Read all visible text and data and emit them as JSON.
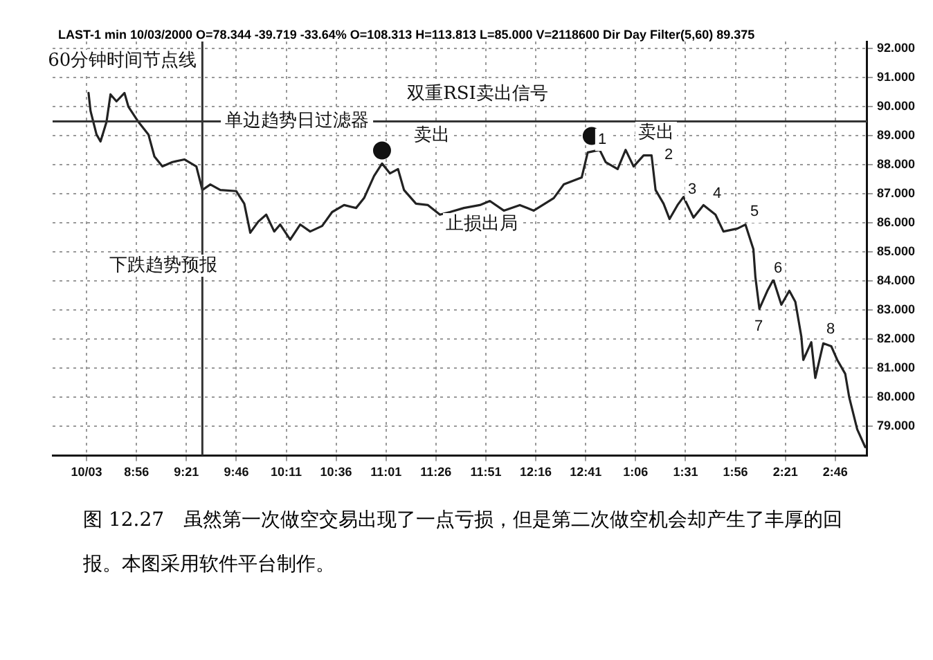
{
  "chart_data": {
    "type": "line",
    "subtitle": "LAST-1 min  10/03/2000  O=78.344  -39.719  -33.64%  O=108.313  H=113.813  L=85.000  V=2118600  Dir Day Filter(5,60)  89.375",
    "x": [
      "2000-10-03T08:32",
      "2000-10-03T08:33",
      "2000-10-03T08:36",
      "2000-10-03T08:38",
      "2000-10-03T08:41",
      "2000-10-03T08:43",
      "2000-10-03T08:46",
      "2000-10-03T08:50",
      "2000-10-03T08:52",
      "2000-10-03T08:57",
      "2000-10-03T09:02",
      "2000-10-03T09:05",
      "2000-10-03T09:09",
      "2000-10-03T09:14",
      "2000-10-03T09:20",
      "2000-10-03T09:26",
      "2000-10-03T09:29",
      "2000-10-03T09:33",
      "2000-10-03T09:38",
      "2000-10-03T09:46",
      "2000-10-03T09:50",
      "2000-10-03T09:53",
      "2000-10-03T09:57",
      "2000-10-03T10:01",
      "2000-10-03T10:05",
      "2000-10-03T10:08",
      "2000-10-03T10:13",
      "2000-10-03T10:18",
      "2000-10-03T10:23",
      "2000-10-03T10:29",
      "2000-10-03T10:34",
      "2000-10-03T10:40",
      "2000-10-03T10:46",
      "2000-10-03T10:50",
      "2000-10-03T10:55",
      "2000-10-03T10:59",
      "2000-10-03T11:03",
      "2000-10-03T11:07",
      "2000-10-03T11:10",
      "2000-10-03T11:16",
      "2000-10-03T11:22",
      "2000-10-03T11:28",
      "2000-10-03T11:33",
      "2000-10-03T11:40",
      "2000-10-03T11:48",
      "2000-10-03T11:53",
      "2000-10-03T12:00",
      "2000-10-03T12:08",
      "2000-10-03T12:15",
      "2000-10-03T12:25",
      "2000-10-03T12:30",
      "2000-10-03T12:39",
      "2000-10-03T12:42",
      "2000-10-03T12:48",
      "2000-10-03T12:51",
      "2000-10-03T12:57",
      "2000-10-03T13:01",
      "2000-10-03T13:05",
      "2000-10-03T13:10",
      "2000-10-03T13:14",
      "2000-10-03T13:16",
      "2000-10-03T13:20",
      "2000-10-03T13:23",
      "2000-10-03T13:27",
      "2000-10-03T13:30",
      "2000-10-03T13:35",
      "2000-10-03T13:40",
      "2000-10-03T13:46",
      "2000-10-03T13:50",
      "2000-10-03T13:57",
      "2000-10-03T14:01",
      "2000-10-03T14:05",
      "2000-10-03T14:06",
      "2000-10-03T14:08",
      "2000-10-03T14:12",
      "2000-10-03T14:15",
      "2000-10-03T14:19",
      "2000-10-03T14:23",
      "2000-10-03T14:26",
      "2000-10-03T14:29",
      "2000-10-03T14:30",
      "2000-10-03T14:34",
      "2000-10-03T14:36",
      "2000-10-03T14:40",
      "2000-10-03T14:44",
      "2000-10-03T14:47",
      "2000-10-03T14:51",
      "2000-10-03T14:53",
      "2000-10-03T14:57",
      "2000-10-03T15:01"
    ],
    "series": [
      {
        "color": "#222222",
        "values": [
          90.48,
          89.86,
          89.05,
          88.81,
          89.48,
          90.43,
          90.19,
          90.48,
          90.0,
          89.48,
          89.05,
          88.29,
          87.95,
          88.1,
          88.19,
          87.95,
          87.14,
          87.33,
          87.14,
          87.1,
          86.67,
          85.67,
          86.05,
          86.29,
          85.71,
          85.95,
          85.43,
          85.95,
          85.71,
          85.9,
          86.38,
          86.62,
          86.52,
          86.86,
          87.62,
          88.05,
          87.71,
          87.86,
          87.14,
          86.67,
          86.62,
          86.29,
          86.38,
          86.52,
          86.62,
          86.76,
          86.43,
          86.62,
          86.43,
          86.86,
          87.33,
          87.57,
          88.43,
          88.52,
          88.1,
          87.86,
          88.52,
          87.95,
          88.33,
          88.33,
          87.14,
          86.67,
          86.14,
          86.62,
          86.9,
          86.19,
          86.62,
          86.29,
          85.71,
          85.81,
          85.95,
          85.1,
          84.14,
          83.05,
          83.67,
          84.05,
          83.19,
          83.67,
          83.29,
          82.1,
          81.29,
          81.9,
          80.67,
          81.86,
          81.76,
          81.29,
          80.81,
          80.0,
          78.9,
          78.29
        ]
      },
      {
        "type": "scatter",
        "color": "#111111",
        "x": [
          "2000-10-03T10:59",
          "2000-10-03T12:44"
        ],
        "values": [
          88.5,
          89.0
        ]
      }
    ],
    "xlim": [
      "2000-10-03T08:14",
      "2000-10-03T15:02"
    ],
    "xticks": [
      {
        "value": "2000-10-03T08:31",
        "label": "10/03"
      },
      {
        "value": "2000-10-03T08:56",
        "label": "8:56"
      },
      {
        "value": "2000-10-03T09:21",
        "label": "9:21"
      },
      {
        "value": "2000-10-03T09:46",
        "label": "9:46"
      },
      {
        "value": "2000-10-03T10:11",
        "label": "10:11"
      },
      {
        "value": "2000-10-03T10:36",
        "label": "10:36"
      },
      {
        "value": "2000-10-03T11:01",
        "label": "11:01"
      },
      {
        "value": "2000-10-03T11:26",
        "label": "11:26"
      },
      {
        "value": "2000-10-03T11:51",
        "label": "11:51"
      },
      {
        "value": "2000-10-03T12:16",
        "label": "12:16"
      },
      {
        "value": "2000-10-03T12:41",
        "label": "12:41"
      },
      {
        "value": "2000-10-03T13:06",
        "label": "1:06"
      },
      {
        "value": "2000-10-03T13:31",
        "label": "1:31"
      },
      {
        "value": "2000-10-03T13:56",
        "label": "1:56"
      },
      {
        "value": "2000-10-03T14:21",
        "label": "2:21"
      },
      {
        "value": "2000-10-03T14:46",
        "label": "2:46"
      }
    ],
    "ylim": [
      78,
      92.25
    ],
    "yticks": [
      {
        "value": 79,
        "label": "79.000"
      },
      {
        "value": 80,
        "label": "80.000"
      },
      {
        "value": 81,
        "label": "81.000"
      },
      {
        "value": 82,
        "label": "82.000"
      },
      {
        "value": 83,
        "label": "83.000"
      },
      {
        "value": 84,
        "label": "84.000"
      },
      {
        "value": 85,
        "label": "85.000"
      },
      {
        "value": 86,
        "label": "86.000"
      },
      {
        "value": 87,
        "label": "87.000"
      },
      {
        "value": 88,
        "label": "88.000"
      },
      {
        "value": 89,
        "label": "89.000"
      },
      {
        "value": 90,
        "label": "90.000"
      },
      {
        "value": 91,
        "label": "91.000"
      },
      {
        "value": 92,
        "label": "92.000"
      }
    ],
    "grid": true,
    "legend": false,
    "line_style": "solid",
    "ref_lines": [
      {
        "axis": "y",
        "value": 89.5,
        "label": "单边趋势日过滤器",
        "color": "#333333"
      },
      {
        "axis": "x",
        "value": "2000-10-03T09:29",
        "label": "60分钟时间节点线",
        "color": "#333333"
      }
    ],
    "annotations": [
      "双重RSI卖出信号",
      "卖出",
      "止损出局",
      "下跌趋势预报",
      "卖出",
      "1",
      "2",
      "3",
      "4",
      "5",
      "6",
      "7",
      "8",
      "图 12.27　虽然第一次做空交易出现了一点亏损，但是第二次做空机会却产生了丰厚的回报。本图采用软件平台制作。"
    ]
  }
}
